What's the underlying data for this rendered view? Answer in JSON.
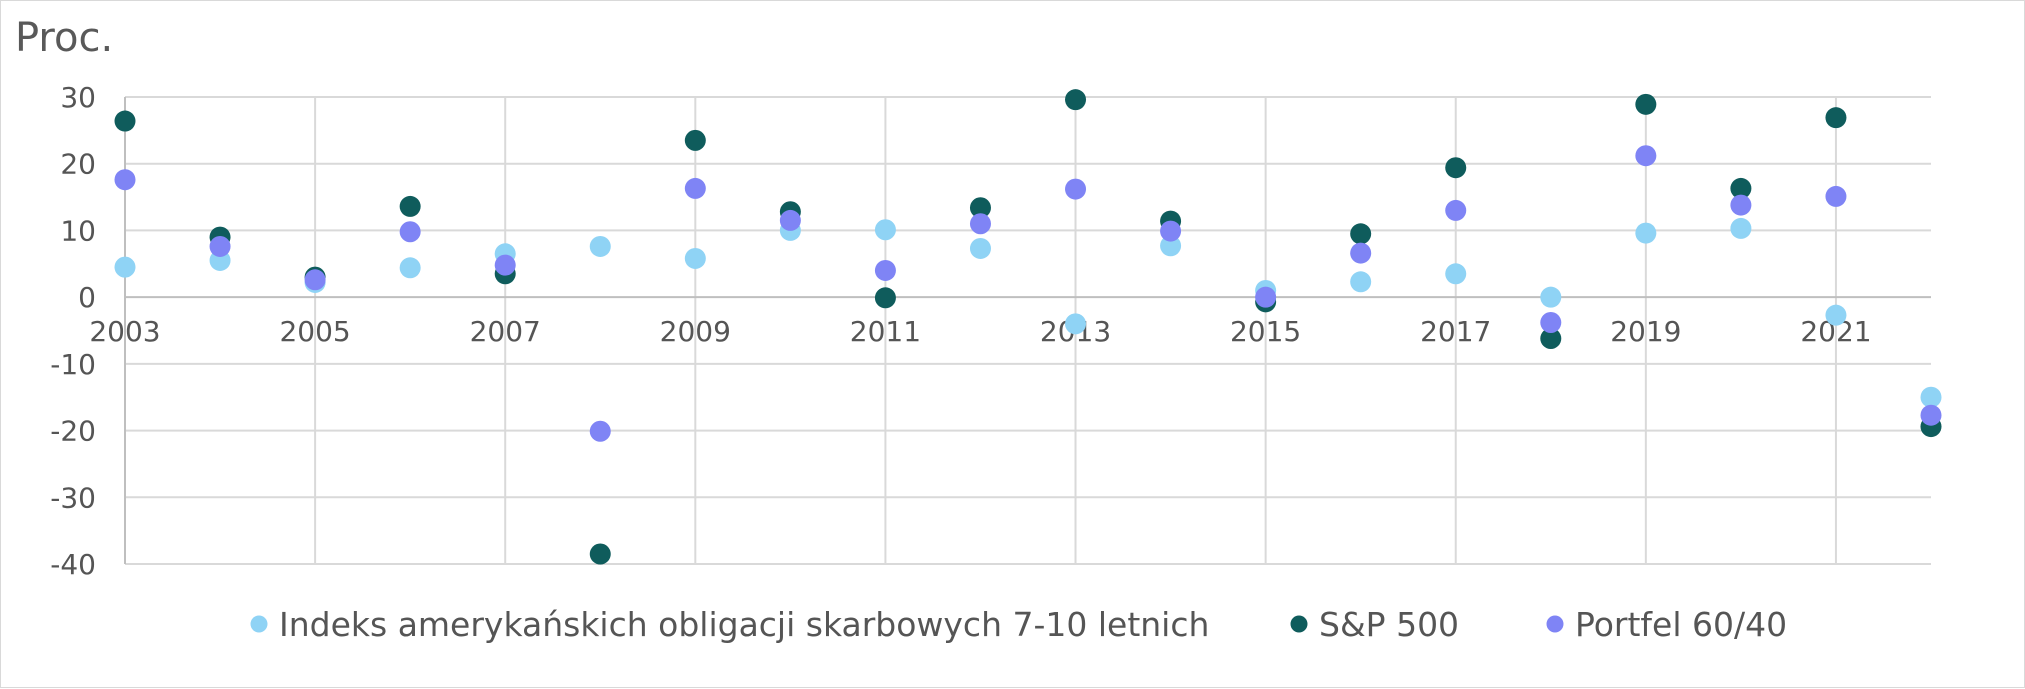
{
  "chart_data": {
    "type": "scatter",
    "unit_label": "Proc.",
    "x_tick_labels": [
      "2003",
      "2005",
      "2007",
      "2009",
      "2011",
      "2013",
      "2015",
      "2017",
      "2019",
      "2021"
    ],
    "y_tick_labels": [
      "30",
      "20",
      "10",
      "0",
      "-10",
      "-20",
      "-30",
      "-40"
    ],
    "xlim": [
      2003,
      2022
    ],
    "ylim": [
      -40,
      30
    ],
    "grid": true,
    "legend_position": "bottom",
    "x": [
      2003,
      2004,
      2005,
      2006,
      2007,
      2008,
      2009,
      2010,
      2011,
      2012,
      2013,
      2014,
      2015,
      2016,
      2017,
      2018,
      2019,
      2020,
      2021,
      2022
    ],
    "series": [
      {
        "name": "Indeks amerykańskich obligacji skarbowych 7-10 letnich",
        "color": "#8fd3f5",
        "values": [
          4.5,
          5.5,
          2.2,
          4.4,
          6.5,
          7.6,
          5.8,
          10.0,
          10.1,
          7.3,
          -4.0,
          7.7,
          1.0,
          2.3,
          3.5,
          0.0,
          9.6,
          10.3,
          -2.7,
          -15.0
        ]
      },
      {
        "name": "S&P 500",
        "color": "#0f5c5c",
        "values": [
          26.4,
          9.0,
          3.0,
          13.6,
          3.5,
          -38.5,
          23.5,
          12.8,
          -0.1,
          13.4,
          29.6,
          11.4,
          -0.7,
          9.5,
          19.4,
          -6.2,
          28.9,
          16.3,
          26.9,
          -19.4
        ]
      },
      {
        "name": "Portfel 60/40",
        "color": "#7f84f5",
        "values": [
          17.6,
          7.6,
          2.6,
          9.8,
          4.8,
          -20.1,
          16.3,
          11.5,
          4.0,
          11.0,
          16.2,
          9.9,
          0.0,
          6.6,
          13.0,
          -3.8,
          21.2,
          13.8,
          15.1,
          -17.7
        ]
      }
    ]
  }
}
